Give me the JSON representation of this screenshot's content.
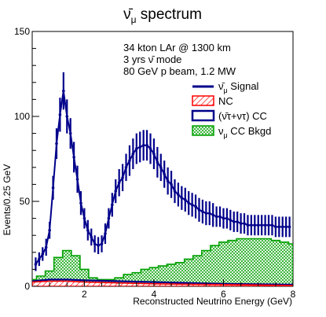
{
  "chart_data": {
    "type": "line",
    "title": "ν̄μ spectrum",
    "title_main": "ν̄",
    "title_sub": "μ",
    "title_rest": " spectrum",
    "xlabel": "Reconstructed Neutrino Energy (GeV)",
    "ylabel": "Events/0.25 GeV",
    "xlim": [
      0.5,
      8
    ],
    "ylim": [
      0,
      150
    ],
    "x_ticks": [
      2,
      4,
      6,
      8
    ],
    "y_ticks": [
      0,
      50,
      100,
      150
    ],
    "annotations": [
      "34 kton LAr @ 1300 km",
      "3 yrs ν̄ mode",
      "80 GeV p beam, 1.2 MW"
    ],
    "legend_position": "right",
    "legend": [
      {
        "label_main": "ν̄",
        "label_sub": "μ",
        "label_rest": " Signal",
        "label": "ν̄μ Signal",
        "color": "#00008b",
        "kind": "line"
      },
      {
        "label": "NC",
        "color": "#ff0000",
        "kind": "hatch"
      },
      {
        "label": "(ν̄τ+ντ) CC",
        "color": "#00008b",
        "kind": "box"
      },
      {
        "label_main": "ν",
        "label_sub": "μ",
        "label_rest": " CC Bkgd",
        "label": "νμ CC Bkgd",
        "color": "#00a000",
        "kind": "hatch"
      }
    ],
    "bin_width": 0.25,
    "signal_centers": [
      0.625,
      0.875,
      1.125,
      1.375,
      1.625,
      1.875,
      2.125,
      2.375,
      2.625,
      2.875,
      3.125,
      3.375,
      3.625,
      3.875,
      4.125,
      4.375,
      4.625,
      4.875,
      5.125,
      5.375,
      5.625,
      5.875,
      6.125,
      6.375,
      6.625,
      6.875,
      7.125,
      7.375,
      7.625,
      7.875
    ],
    "series": [
      {
        "name": "ν̄μ Signal",
        "color": "#00008b",
        "x": [
          0.6,
          0.7,
          0.8,
          0.9,
          1.0,
          1.1,
          1.2,
          1.3,
          1.4,
          1.5,
          1.6,
          1.7,
          1.8,
          1.9,
          2.0,
          2.1,
          2.2,
          2.3,
          2.4,
          2.5,
          2.6,
          2.7,
          2.8,
          2.9,
          3.0,
          3.1,
          3.2,
          3.3,
          3.4,
          3.5,
          3.6,
          3.7,
          3.8,
          3.9,
          4.0,
          4.1,
          4.2,
          4.3,
          4.4,
          4.5,
          4.6,
          4.7,
          4.8,
          4.9,
          5.0,
          5.1,
          5.2,
          5.3,
          5.4,
          5.5,
          5.6,
          5.7,
          5.8,
          5.9,
          6.0,
          6.1,
          6.2,
          6.3,
          6.4,
          6.5,
          6.6,
          6.7,
          6.8,
          6.9,
          7.0,
          7.1,
          7.2,
          7.3,
          7.4,
          7.5,
          7.6,
          7.7,
          7.8,
          7.9
        ],
        "y": [
          13,
          16,
          19,
          23,
          33,
          58,
          84,
          101,
          115,
          100,
          90,
          76,
          63,
          49,
          40,
          33,
          29,
          25,
          24,
          25,
          31,
          40,
          48,
          56,
          61,
          64,
          70,
          74,
          78,
          81,
          82,
          83,
          83,
          81,
          78,
          73,
          70,
          66,
          62,
          60,
          56,
          54,
          52,
          51,
          49,
          48,
          47,
          45,
          44,
          43,
          43,
          42,
          41,
          41,
          40,
          40,
          39,
          38,
          38,
          37,
          37,
          36,
          36,
          36,
          36,
          36,
          36,
          36,
          36,
          35,
          35,
          35,
          35,
          35
        ],
        "err": [
          4,
          4,
          4,
          5,
          5,
          7,
          9,
          10,
          11,
          10,
          9,
          9,
          8,
          7,
          6,
          6,
          5,
          5,
          5,
          5,
          6,
          6,
          7,
          7,
          8,
          8,
          8,
          9,
          9,
          9,
          9,
          9,
          9,
          9,
          9,
          9,
          8,
          8,
          8,
          8,
          7,
          7,
          7,
          7,
          7,
          7,
          7,
          7,
          7,
          7,
          7,
          7,
          6,
          6,
          6,
          6,
          6,
          6,
          6,
          6,
          6,
          6,
          6,
          6,
          6,
          6,
          6,
          6,
          6,
          6,
          6,
          6,
          6,
          6
        ]
      },
      {
        "name": "νμ CC Bkgd",
        "color": "#00a000",
        "x": [
          0.5,
          0.75,
          1.0,
          1.25,
          1.5,
          1.75,
          2.0,
          2.25,
          2.5,
          2.75,
          3.0,
          3.25,
          3.5,
          3.75,
          4.0,
          4.25,
          4.5,
          4.75,
          5.0,
          5.25,
          5.5,
          5.75,
          6.0,
          6.25,
          6.5,
          6.75,
          7.0,
          7.25,
          7.5,
          7.75,
          8.0
        ],
        "y": [
          4,
          6,
          9,
          17,
          21,
          18,
          10,
          5,
          4,
          4,
          5,
          7,
          8,
          10,
          11,
          12,
          13,
          14,
          16,
          18,
          21,
          24,
          26,
          27,
          28,
          28,
          28,
          28,
          27,
          26,
          25
        ]
      },
      {
        "name": "(ν̄τ+ντ) CC",
        "color": "#00008b",
        "x": [
          0.5,
          1.0,
          1.5,
          2.0,
          3.0,
          4.0,
          5.0,
          6.0,
          7.0,
          8.0
        ],
        "y": [
          3,
          4,
          4,
          3.5,
          3,
          2.5,
          2,
          1.5,
          1.2,
          1
        ]
      },
      {
        "name": "NC",
        "color": "#ff0000",
        "x": [
          0.5,
          1.0,
          1.5,
          2.0,
          3.0,
          4.0,
          5.0,
          6.0,
          7.0,
          8.0
        ],
        "y": [
          2.5,
          3,
          3,
          2.5,
          2,
          1.5,
          1.2,
          1,
          0.8,
          0.5
        ]
      }
    ]
  }
}
